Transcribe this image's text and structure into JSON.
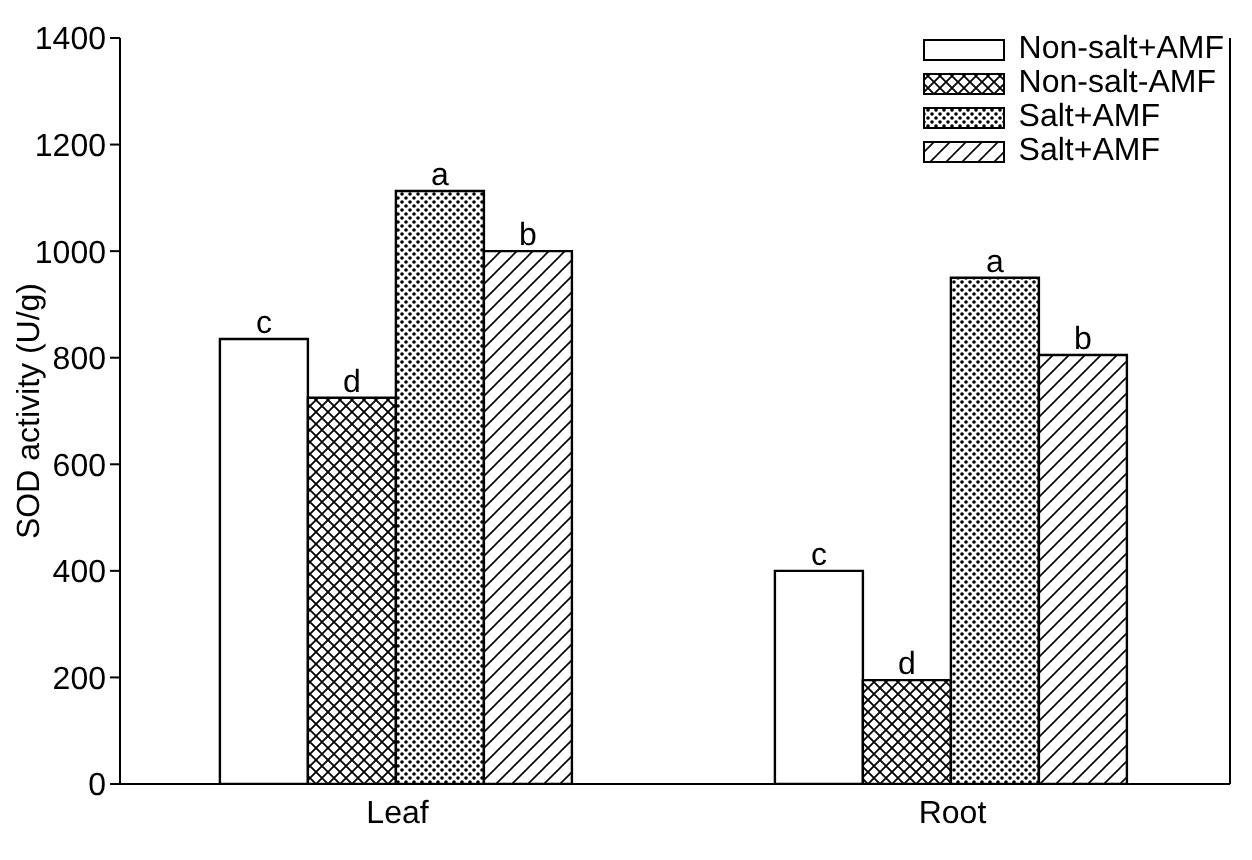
{
  "chart_data": {
    "type": "bar",
    "ylabel": "SOD activity (U/g)",
    "categories": [
      "Leaf",
      "Root"
    ],
    "series": [
      {
        "name": "Non-salt+AMF",
        "color": "#000000",
        "values": [
          835,
          400
        ],
        "value_labels": [
          "c",
          "c"
        ]
      },
      {
        "name": "Non-salt-AMF",
        "color": "#000000",
        "values": [
          725,
          195
        ],
        "value_labels": [
          "d",
          "d"
        ]
      },
      {
        "name": "Salt+AMF",
        "color": "#000000",
        "values": [
          1113,
          950
        ],
        "value_labels": [
          "a",
          "a"
        ]
      },
      {
        "name": "Salt+AMF",
        "color": "#000000",
        "values": [
          1000,
          805
        ],
        "value_labels": [
          "b",
          "b"
        ]
      }
    ],
    "ylim": [
      0,
      1400
    ],
    "yticks": [
      0,
      200,
      400,
      600,
      800,
      1000,
      1200,
      1400
    ],
    "legend": "top right"
  }
}
